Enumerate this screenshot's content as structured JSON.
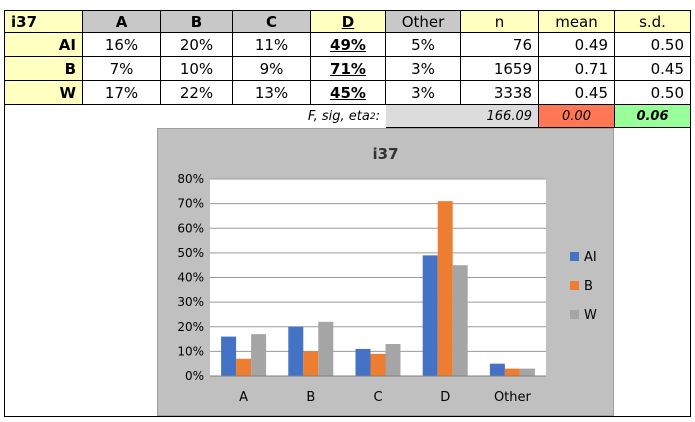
{
  "table": {
    "title": "i37",
    "headers": [
      "A",
      "B",
      "C",
      "D",
      "Other",
      "n",
      "mean",
      "s.d."
    ],
    "rows": [
      {
        "label": "AI",
        "cells": [
          "16%",
          "20%",
          "11%",
          "49%",
          "5%",
          "76",
          "0.49",
          "0.50"
        ]
      },
      {
        "label": "B",
        "cells": [
          "7%",
          "10%",
          "9%",
          "71%",
          "3%",
          "1659",
          "0.71",
          "0.45"
        ]
      },
      {
        "label": "W",
        "cells": [
          "17%",
          "22%",
          "13%",
          "45%",
          "3%",
          "3338",
          "0.45",
          "0.50"
        ]
      }
    ],
    "stats": {
      "label_text": "F, sig, eta",
      "label_sup": "2",
      "label_suffix": ":",
      "f_value": "166.09",
      "sig_value": "0.00",
      "eta_value": "0.06"
    }
  },
  "colors": {
    "header_yellow": "#ffffc0",
    "header_grey": "#c8c8c8",
    "sig_cell": "#ff7755",
    "eta_cell": "#99ff99",
    "plot_background": "#ffffff",
    "panel_background": "#c0c0c0"
  },
  "chart_data": {
    "type": "bar",
    "title": "i37",
    "categories": [
      "A",
      "B",
      "C",
      "D",
      "Other"
    ],
    "series": [
      {
        "name": "AI",
        "color": "#4472c4",
        "values": [
          0.16,
          0.2,
          0.11,
          0.49,
          0.05
        ]
      },
      {
        "name": "B",
        "color": "#ed7d31",
        "values": [
          0.07,
          0.1,
          0.09,
          0.71,
          0.03
        ]
      },
      {
        "name": "W",
        "color": "#a5a5a5",
        "values": [
          0.17,
          0.22,
          0.13,
          0.45,
          0.03
        ]
      }
    ],
    "ylim": [
      0,
      0.8
    ],
    "yticks": [
      "0%",
      "10%",
      "20%",
      "30%",
      "40%",
      "50%",
      "60%",
      "70%",
      "80%"
    ],
    "grid": true,
    "legend": "right"
  }
}
